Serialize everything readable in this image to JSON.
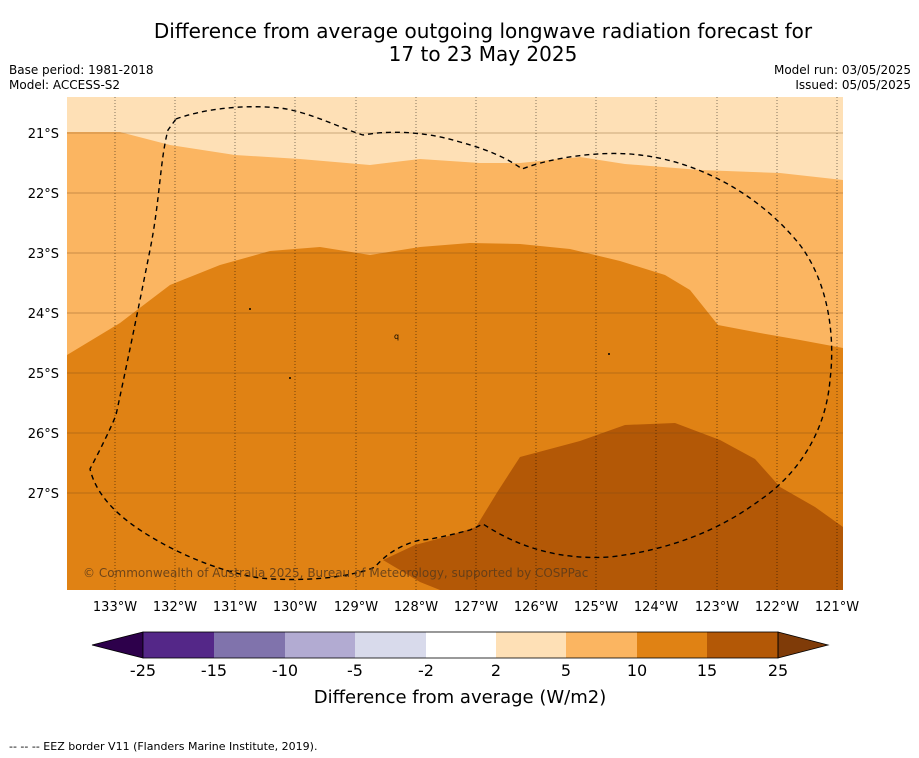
{
  "title": {
    "line1": "Difference from average outgoing longwave radiation forecast for",
    "line2": "17 to 23 May 2025"
  },
  "meta_left": {
    "base_period": "Base period: 1981-2018",
    "model": "Model: ACCESS-S2"
  },
  "meta_right": {
    "model_run": "Model run: 03/05/2025",
    "issued": "Issued: 05/05/2025"
  },
  "map": {
    "lon_ticks": [
      "133°W",
      "132°W",
      "131°W",
      "130°W",
      "129°W",
      "128°W",
      "127°W",
      "126°W",
      "125°W",
      "124°W",
      "123°W",
      "122°W",
      "121°W"
    ],
    "lat_ticks": [
      "21°S",
      "22°S",
      "23°S",
      "24°S",
      "25°S",
      "26°S",
      "27°S"
    ],
    "copyright": "© Commonwealth of Australia 2025, Bureau of Meteorology, supported by COSPPac",
    "bands": [
      {
        "range": "2 to 5",
        "color": "#fee0b6"
      },
      {
        "range": "5 to 10",
        "color": "#fbb561"
      },
      {
        "range": "10 to 15",
        "color": "#e08214"
      },
      {
        "range": "15 to 25",
        "color": "#b35806"
      }
    ],
    "eez_line_color": "#000000"
  },
  "colorbar": {
    "title": "Difference from average (W/m2)",
    "labels": [
      "-25",
      "-15",
      "-10",
      "-5",
      "-2",
      "2",
      "5",
      "10",
      "15",
      "25"
    ],
    "colors": [
      "#542788",
      "#8073ac",
      "#b2abd2",
      "#d8daeb",
      "#ffffff",
      "#fee0b6",
      "#fbb561",
      "#e08214",
      "#b35806"
    ],
    "under_color": "#2d004b",
    "over_color": "#7f3b08"
  },
  "footer": "--  --  -- EEZ border V11 (Flanders Marine Institute, 2019)."
}
